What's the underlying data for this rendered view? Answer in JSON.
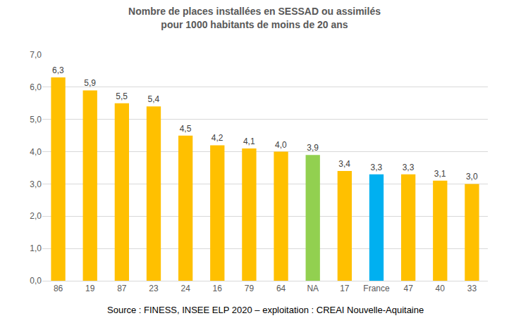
{
  "chart_data": {
    "type": "bar",
    "title": "Nombre de places installées en SESSAD ou assimilés\npour 1000 habitants de moins de 20 ans",
    "categories": [
      "86",
      "19",
      "87",
      "23",
      "24",
      "16",
      "79",
      "64",
      "NA",
      "17",
      "France",
      "47",
      "40",
      "33"
    ],
    "values": [
      6.3,
      5.9,
      5.5,
      5.4,
      4.5,
      4.2,
      4.1,
      4.0,
      3.9,
      3.4,
      3.3,
      3.3,
      3.1,
      3.0
    ],
    "value_labels": [
      "6,3",
      "5,9",
      "5,5",
      "5,4",
      "4,5",
      "4,2",
      "4,1",
      "4,0",
      "3,9",
      "3,4",
      "3,3",
      "3,3",
      "3,1",
      "3,0"
    ],
    "colors": [
      "#FFC000",
      "#FFC000",
      "#FFC000",
      "#FFC000",
      "#FFC000",
      "#FFC000",
      "#FFC000",
      "#FFC000",
      "#92D050",
      "#FFC000",
      "#00B0F0",
      "#FFC000",
      "#FFC000",
      "#FFC000"
    ],
    "data_labels": true,
    "ylim": [
      0,
      7
    ],
    "yticks": [
      {
        "value": 0,
        "label": "0,0"
      },
      {
        "value": 1,
        "label": "1,0"
      },
      {
        "value": 2,
        "label": "2,0"
      },
      {
        "value": 3,
        "label": "3,0"
      },
      {
        "value": 4,
        "label": "4,0"
      },
      {
        "value": 5,
        "label": "5,0"
      },
      {
        "value": 6,
        "label": "6,0"
      },
      {
        "value": 7,
        "label": "7,0"
      }
    ],
    "grid": true,
    "source": "Source : FINESS, INSEE ELP 2020 – exploitation : CREAI Nouvelle-Aquitaine"
  }
}
